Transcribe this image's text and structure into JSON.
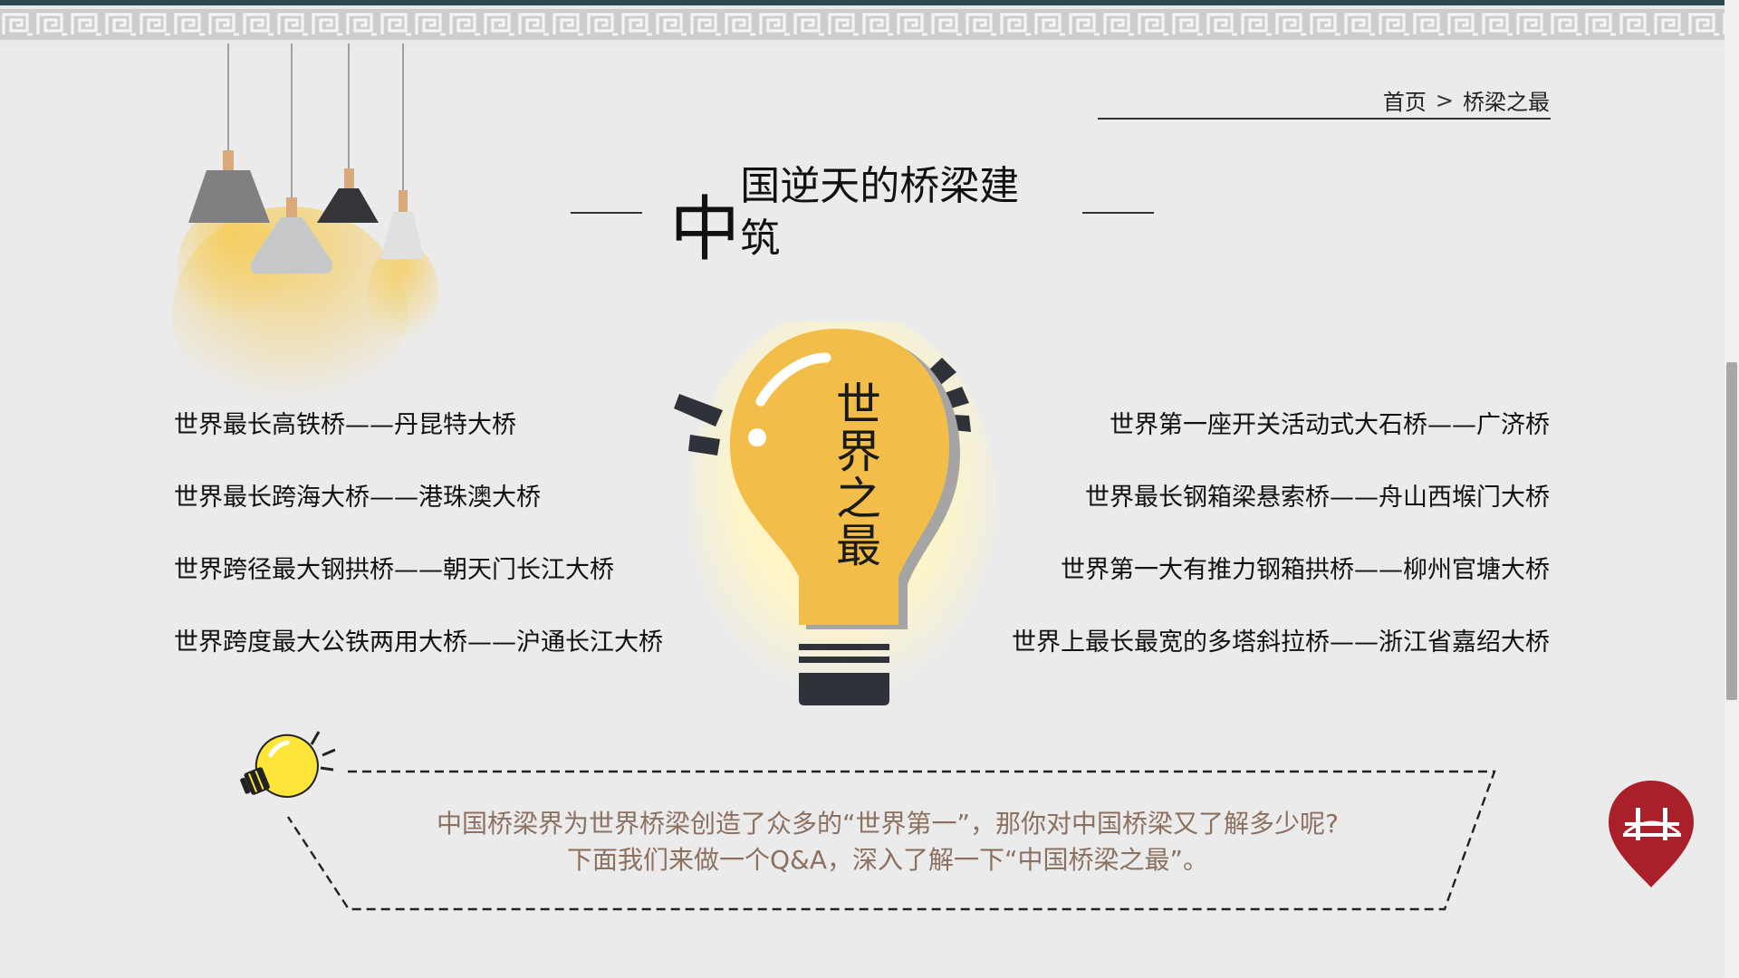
{
  "breadcrumb": {
    "home": "首页",
    "separator": ">",
    "current": "桥梁之最"
  },
  "title": {
    "first_char": "中",
    "rest": "国逆天的桥梁建筑"
  },
  "bulb": {
    "label": "世界之最",
    "color": "#f2bd48"
  },
  "records_left": [
    "世界最长高铁桥——丹昆特大桥",
    "世界最长跨海大桥——港珠澳大桥",
    "世界跨径最大钢拱桥——朝天门长江大桥",
    "世界跨度最大公铁两用大桥——沪通长江大桥"
  ],
  "records_right": [
    "世界第一座开关活动式大石桥——广济桥",
    "世界最长钢箱梁悬索桥——舟山西堠门大桥",
    "世界第一大有推力钢箱拱桥——柳州官塘大桥",
    "世界上最长最宽的多塔斜拉桥——浙江省嘉绍大桥"
  ],
  "note": {
    "line1": "中国桥梁界为世界桥梁创造了众多的“世界第一”，那你对中国桥梁又了解多少呢?",
    "line2": "下面我们来做一个Q&A，深入了解一下“中国桥梁之最”。"
  },
  "icons": [
    "fret-pattern",
    "pendant-lamps",
    "lightbulb-icon",
    "small-lightbulb-icon",
    "bridge-pin-icon"
  ],
  "colors": {
    "background": "#ebebeb",
    "pin": "#a9202a",
    "note_text": "#8c7060"
  }
}
